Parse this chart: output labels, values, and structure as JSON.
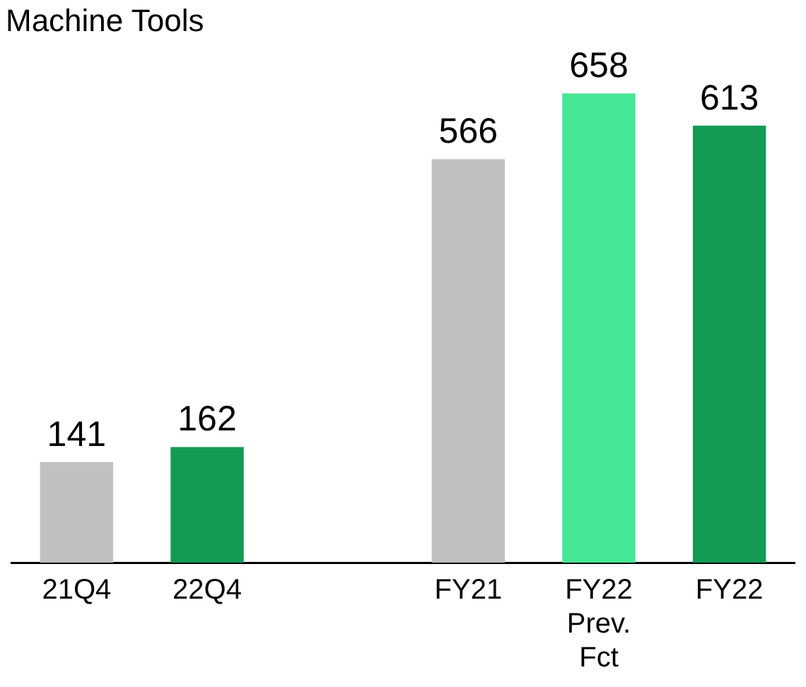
{
  "chart_data": {
    "type": "bar",
    "title": "Machine Tools",
    "categories": [
      "21Q4",
      "22Q4",
      null,
      "FY21",
      "FY22 Prev. Fct",
      "FY22"
    ],
    "values": [
      141,
      162,
      null,
      566,
      658,
      613
    ],
    "colors": [
      "#c0c0c0",
      "#139a55",
      "#c0c0c0",
      "#c0c0c0",
      "#45e695",
      "#139a55"
    ],
    "data_labels": true,
    "legend": false,
    "grid": false
  }
}
